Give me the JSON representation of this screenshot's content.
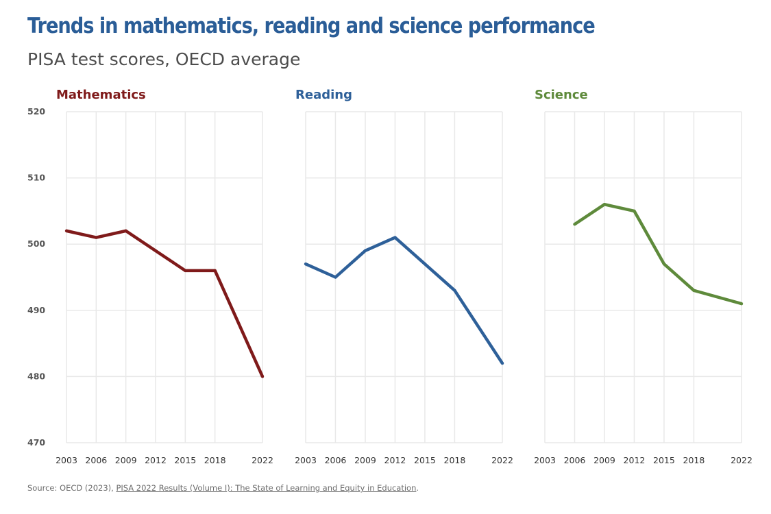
{
  "header": {
    "title": "Trends in mathematics, reading and science performance",
    "subtitle": "PISA test scores, OECD average"
  },
  "source": {
    "prefix": "Source: OECD (2023), ",
    "link_text": "PISA 2022 Results (Volume I): The State of Learning and Equity in Education",
    "suffix": "."
  },
  "chart_data": [
    {
      "type": "line",
      "title": "Mathematics",
      "color": "#7f1a1a",
      "x": [
        "2003",
        "2006",
        "2009",
        "2012",
        "2015",
        "2018",
        "2022"
      ],
      "y": [
        502,
        501,
        502,
        499,
        496,
        496,
        480
      ],
      "ylim": [
        470,
        520
      ],
      "yticks": [
        470,
        480,
        490,
        500,
        510,
        520
      ],
      "grid": true
    },
    {
      "type": "line",
      "title": "Reading",
      "color": "#2e6099",
      "x": [
        "2003",
        "2006",
        "2009",
        "2012",
        "2015",
        "2018",
        "2022"
      ],
      "y": [
        497,
        495,
        499,
        501,
        497,
        493,
        482
      ],
      "ylim": [
        470,
        520
      ],
      "grid": true
    },
    {
      "type": "line",
      "title": "Science",
      "color": "#5e8a3b",
      "x": [
        "2003",
        "2006",
        "2009",
        "2012",
        "2015",
        "2018",
        "2022"
      ],
      "y": [
        null,
        503,
        506,
        505,
        497,
        493,
        491
      ],
      "ylim": [
        470,
        520
      ],
      "grid": true
    }
  ]
}
